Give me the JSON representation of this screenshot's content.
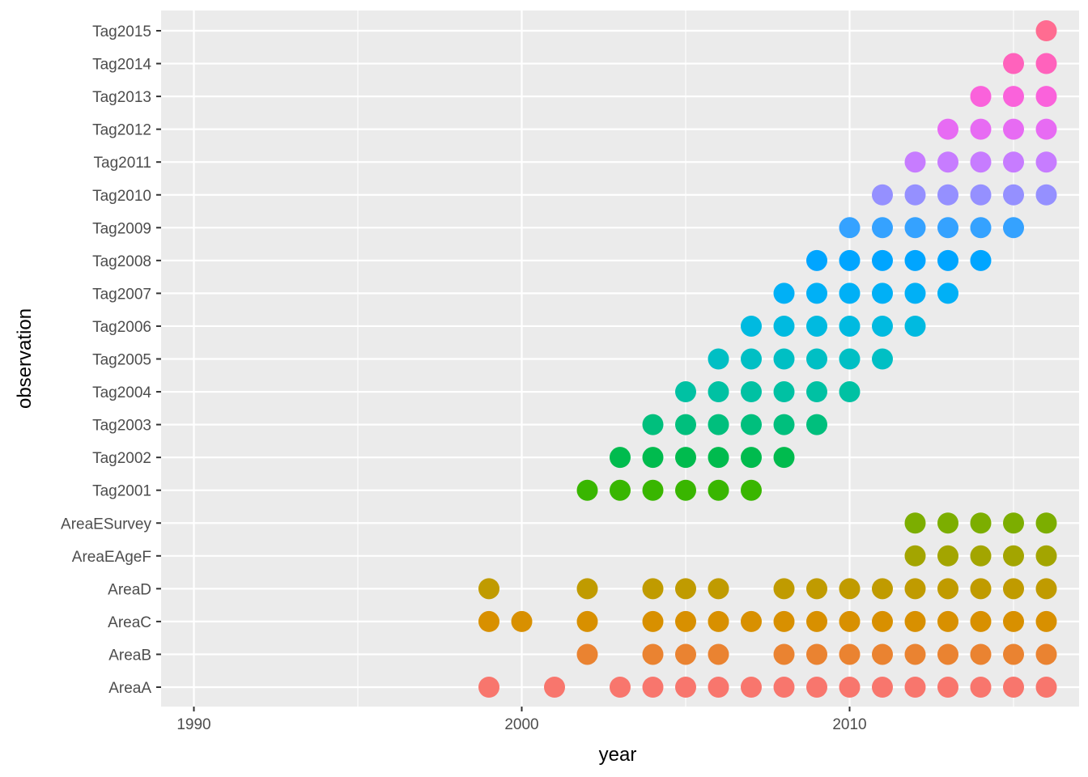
{
  "chart_data": {
    "type": "scatter",
    "xlabel": "year",
    "ylabel": "observation",
    "xlim": [
      1989,
      2017
    ],
    "x_ticks": [
      "1990",
      "2000",
      "2010"
    ],
    "x_tick_values": [
      1990,
      2000,
      2010
    ],
    "grid": true,
    "panel_background": "#ebebeb",
    "categories": [
      "AreaA",
      "AreaB",
      "AreaC",
      "AreaD",
      "AreaEAgeF",
      "AreaESurvey",
      "Tag2001",
      "Tag2002",
      "Tag2003",
      "Tag2004",
      "Tag2005",
      "Tag2006",
      "Tag2007",
      "Tag2008",
      "Tag2009",
      "Tag2010",
      "Tag2011",
      "Tag2012",
      "Tag2013",
      "Tag2014",
      "Tag2015"
    ],
    "colors": [
      "#f8766d",
      "#ea8331",
      "#d89000",
      "#c09b00",
      "#a3a500",
      "#7cae00",
      "#39b600",
      "#00bb4e",
      "#00bf7d",
      "#00c1a3",
      "#00bfc4",
      "#00bae0",
      "#00b0f6",
      "#00a5ff",
      "#35a2ff",
      "#9590ff",
      "#c77cff",
      "#e76bf3",
      "#fa62db",
      "#ff62bc",
      "#ff6c91"
    ],
    "series": [
      {
        "category": "AreaA",
        "years": [
          1999,
          2001,
          2003,
          2004,
          2005,
          2006,
          2007,
          2008,
          2009,
          2010,
          2011,
          2012,
          2013,
          2014,
          2015,
          2016
        ]
      },
      {
        "category": "AreaB",
        "years": [
          2002,
          2004,
          2005,
          2006,
          2008,
          2009,
          2010,
          2011,
          2012,
          2013,
          2014,
          2015,
          2016
        ]
      },
      {
        "category": "AreaC",
        "years": [
          1999,
          2000,
          2002,
          2004,
          2005,
          2006,
          2007,
          2008,
          2009,
          2010,
          2011,
          2012,
          2013,
          2014,
          2015,
          2016
        ]
      },
      {
        "category": "AreaD",
        "years": [
          1999,
          2002,
          2004,
          2005,
          2006,
          2008,
          2009,
          2010,
          2011,
          2012,
          2013,
          2014,
          2015,
          2016
        ]
      },
      {
        "category": "AreaEAgeF",
        "years": [
          2012,
          2013,
          2014,
          2015,
          2016
        ]
      },
      {
        "category": "AreaESurvey",
        "years": [
          2012,
          2013,
          2014,
          2015,
          2016
        ]
      },
      {
        "category": "Tag2001",
        "years": [
          2002,
          2003,
          2004,
          2005,
          2006,
          2007
        ]
      },
      {
        "category": "Tag2002",
        "years": [
          2003,
          2004,
          2005,
          2006,
          2007,
          2008
        ]
      },
      {
        "category": "Tag2003",
        "years": [
          2004,
          2005,
          2006,
          2007,
          2008,
          2009
        ]
      },
      {
        "category": "Tag2004",
        "years": [
          2005,
          2006,
          2007,
          2008,
          2009,
          2010
        ]
      },
      {
        "category": "Tag2005",
        "years": [
          2006,
          2007,
          2008,
          2009,
          2010,
          2011
        ]
      },
      {
        "category": "Tag2006",
        "years": [
          2007,
          2008,
          2009,
          2010,
          2011,
          2012
        ]
      },
      {
        "category": "Tag2007",
        "years": [
          2008,
          2009,
          2010,
          2011,
          2012,
          2013
        ]
      },
      {
        "category": "Tag2008",
        "years": [
          2009,
          2010,
          2011,
          2012,
          2013,
          2014
        ]
      },
      {
        "category": "Tag2009",
        "years": [
          2010,
          2011,
          2012,
          2013,
          2014,
          2015
        ]
      },
      {
        "category": "Tag2010",
        "years": [
          2011,
          2012,
          2013,
          2014,
          2015,
          2016
        ]
      },
      {
        "category": "Tag2011",
        "years": [
          2012,
          2013,
          2014,
          2015,
          2016
        ]
      },
      {
        "category": "Tag2012",
        "years": [
          2013,
          2014,
          2015,
          2016
        ]
      },
      {
        "category": "Tag2013",
        "years": [
          2014,
          2015,
          2016
        ]
      },
      {
        "category": "Tag2014",
        "years": [
          2015,
          2016
        ]
      },
      {
        "category": "Tag2015",
        "years": [
          2016
        ]
      }
    ]
  }
}
